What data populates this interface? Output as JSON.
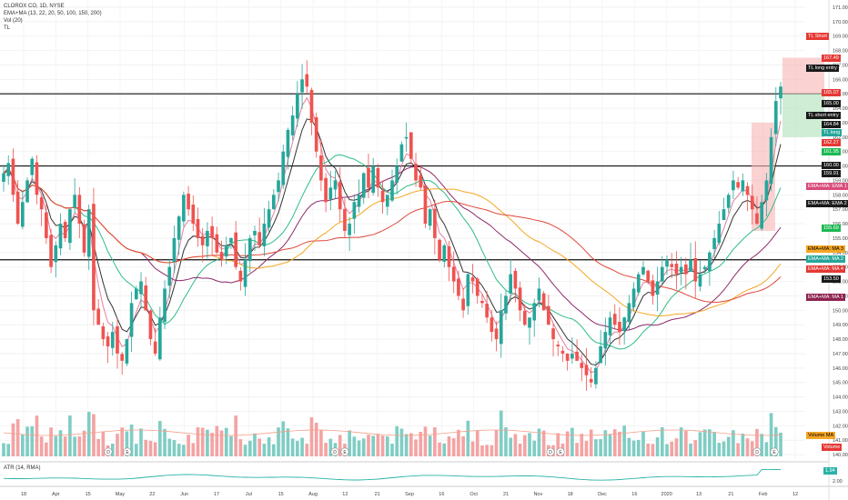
{
  "header": {
    "symbol_line": "CLOROX CO, 1D, NYSE",
    "studies": [
      "EMA+MA (13, 22, 20, 50, 100, 150, 200)",
      "Vol (20)",
      "TL"
    ]
  },
  "atr_title": "ATR (14, RMA)",
  "atr_value": "1.94",
  "atr_tick": "2.00",
  "colors": {
    "up": "#26a69a",
    "down": "#ef5350",
    "vol_up": "#7fcdc4",
    "vol_down": "#f4a3a3",
    "ema13": "#e57fa0",
    "ema22": "#333333",
    "ma50": "#2ebd85",
    "ma100": "#8e2a6a",
    "ma150": "#f5a623",
    "ma200": "#e0483c",
    "atr": "#2ab3a6"
  },
  "chart_data": {
    "type": "candlestick",
    "y_axis_ticks": [
      140,
      141,
      142,
      143,
      144,
      145,
      146,
      147,
      148,
      149,
      150,
      151,
      152,
      153,
      154,
      155,
      156,
      157,
      158,
      159,
      160,
      161,
      162,
      163,
      164,
      165,
      166,
      167,
      168,
      169,
      170,
      171
    ],
    "y_range": [
      139.5,
      171.5
    ],
    "x_tick_labels": [
      "18",
      "Apr",
      "15",
      "May",
      "22",
      "Jun",
      "17",
      "Jul",
      "15",
      "Aug",
      "12",
      "21",
      "Sep",
      "16",
      "Oct",
      "21",
      "Nov",
      "18",
      "Dec",
      "16",
      "2020",
      "13",
      "21",
      "Feb",
      "12"
    ],
    "horizontal_levels": [
      165.0,
      160.0,
      153.5
    ],
    "price_path": [
      159.5,
      160.2,
      158.0,
      156.0,
      157.5,
      159.0,
      160.5,
      158.0,
      157.0,
      155.0,
      153.0,
      154.5,
      156.0,
      155.0,
      157.0,
      158.0,
      156.0,
      154.0,
      157.0,
      150.0,
      149.0,
      148.0,
      147.5,
      148.5,
      147.0,
      146.5,
      148.0,
      150.5,
      151.5,
      152.0,
      150.0,
      148.0,
      147.0,
      149.5,
      151.5,
      153.0,
      155.0,
      156.5,
      158.0,
      157.0,
      156.0,
      155.0,
      154.5,
      155.5,
      155.0,
      154.0,
      153.5,
      154.5,
      155.0,
      153.0,
      152.0,
      153.5,
      155.0,
      155.5,
      154.5,
      156.0,
      157.0,
      158.0,
      159.0,
      161.0,
      162.5,
      163.5,
      165.0,
      166.0,
      165.5,
      163.0,
      161.0,
      159.0,
      157.5,
      158.5,
      159.0,
      157.0,
      155.5,
      156.0,
      157.5,
      158.0,
      159.5,
      158.5,
      160.0,
      158.5,
      157.5,
      158.0,
      159.0,
      160.0,
      161.5,
      162.0,
      160.5,
      159.0,
      158.5,
      156.0,
      157.0,
      155.0,
      153.5,
      154.5,
      153.0,
      152.0,
      151.0,
      150.0,
      152.5,
      152.0,
      151.0,
      150.5,
      149.5,
      148.5,
      148.0,
      150.0,
      151.0,
      152.5,
      151.5,
      150.0,
      149.0,
      149.5,
      150.5,
      151.5,
      150.0,
      149.0,
      148.0,
      147.5,
      147.0,
      146.5,
      147.0,
      146.5,
      146.0,
      145.5,
      145.0,
      146.0,
      147.5,
      148.5,
      149.5,
      149.0,
      148.5,
      149.5,
      150.5,
      151.5,
      152.5,
      153.0,
      152.0,
      151.0,
      152.0,
      153.0,
      153.5,
      153.0,
      152.5,
      153.0,
      152.5,
      153.5,
      152.0,
      152.5,
      153.0,
      154.0,
      155.0,
      156.0,
      157.0,
      158.0,
      159.0,
      158.5,
      159.0,
      158.0,
      157.0,
      156.0,
      157.5,
      159.0,
      162.0,
      164.5,
      165.5
    ],
    "volume_scale_ticks": [
      140,
      141,
      142,
      143,
      144,
      145
    ],
    "series": [
      {
        "name": "EMA+MA: EMA 1"
      },
      {
        "name": "EMA+MA: EMA 2"
      },
      {
        "name": "EMA+MA: MA 1"
      },
      {
        "name": "EMA+MA: MA 2"
      },
      {
        "name": "EMA+MA: MA 3"
      },
      {
        "name": "EMA+MA: MA 4"
      },
      {
        "name": "Volume MA"
      },
      {
        "name": "Volume"
      }
    ]
  },
  "axis_tags": [
    {
      "label": "TL Short",
      "value": 169.0,
      "style": "red"
    },
    {
      "label": "167.49",
      "value": 167.49,
      "style": "red"
    },
    {
      "label": "TL long entry",
      "value": 166.8,
      "style": "dark"
    },
    {
      "label": "165.07",
      "value": 165.07,
      "style": "red"
    },
    {
      "label": "165.00",
      "value": 164.3,
      "style": "dark"
    },
    {
      "label": "TL short entry",
      "value": 163.5,
      "style": "dark"
    },
    {
      "label": "164.84",
      "value": 162.9,
      "style": "dark"
    },
    {
      "label": "TL long",
      "value": 162.3,
      "style": "green"
    },
    {
      "label": "162.27",
      "value": 161.6,
      "style": "red"
    },
    {
      "label": "161.95",
      "value": 161.0,
      "style": "brightgreen"
    },
    {
      "label": "160.00",
      "value": 160.05,
      "style": "dark"
    },
    {
      "label": "159.91",
      "value": 159.45,
      "style": "dark"
    },
    {
      "label": "EMA+MA: EMA 1",
      "value": 158.6,
      "style": "pink"
    },
    {
      "label": "EMA+MA: EMA 2",
      "value": 157.4,
      "style": "dark"
    },
    {
      "label": "155.69",
      "value": 155.7,
      "style": "brightgreen"
    },
    {
      "label": "EMA+MA: MA 3",
      "value": 154.25,
      "style": "orange"
    },
    {
      "label": "EMA+MA: MA 2",
      "value": 153.55,
      "style": "green"
    },
    {
      "label": "EMA+MA: MA 4",
      "value": 152.85,
      "style": "red"
    },
    {
      "label": "153.50",
      "value": 152.15,
      "style": "dark"
    },
    {
      "label": "EMA+MA: MA 1",
      "value": 150.9,
      "style": "maroon"
    },
    {
      "label": "Volume MA",
      "value": 141.3,
      "style": "orange"
    },
    {
      "label": "Volume",
      "value": 140.5,
      "style": "red"
    }
  ],
  "event_markers": [
    {
      "label": "D"
    },
    {
      "label": "E"
    },
    {
      "label": "D"
    },
    {
      "label": "E"
    },
    {
      "label": "D"
    },
    {
      "label": "E"
    },
    {
      "label": "D"
    },
    {
      "label": "E"
    }
  ]
}
